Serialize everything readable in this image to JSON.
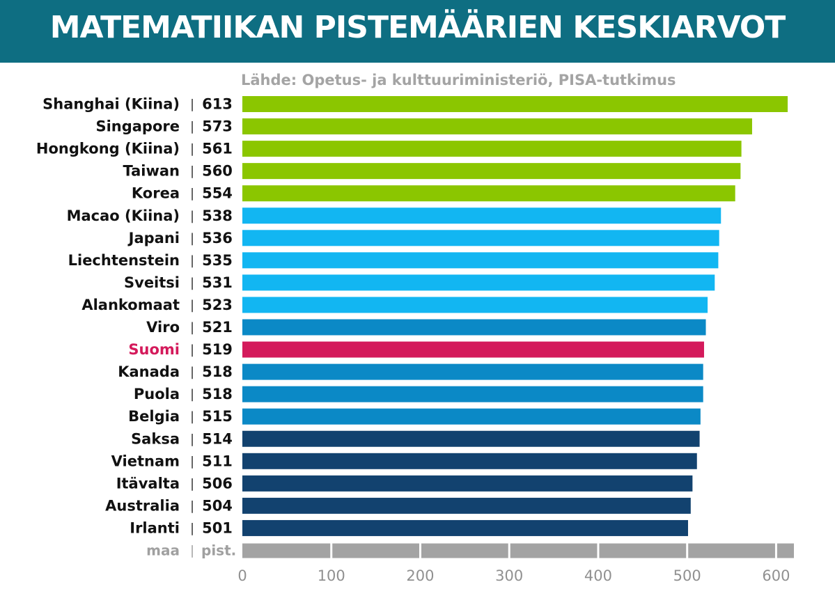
{
  "chart_data": {
    "type": "bar",
    "orientation": "horizontal",
    "title": "MATEMATIIKAN PISTEMÄÄRIEN KESKIARVOT",
    "source": "Lähde: Opetus- ja kulttuuriministeriö, PISA-tutkimus",
    "categories": [
      "Shanghai (Kiina)",
      "Singapore",
      "Hongkong (Kiina)",
      "Taiwan",
      "Korea",
      "Macao (Kiina)",
      "Japani",
      "Liechtenstein",
      "Sveitsi",
      "Alankomaat",
      "Viro",
      "Suomi",
      "Kanada",
      "Puola",
      "Belgia",
      "Saksa",
      "Vietnam",
      "Itävalta",
      "Australia",
      "Irlanti"
    ],
    "values": [
      613,
      573,
      561,
      560,
      554,
      538,
      536,
      535,
      531,
      523,
      521,
      519,
      518,
      518,
      515,
      514,
      511,
      506,
      504,
      501
    ],
    "bar_colors": [
      "#8bc600",
      "#8bc600",
      "#8bc600",
      "#8bc600",
      "#8bc600",
      "#12b6f2",
      "#12b6f2",
      "#12b6f2",
      "#12b6f2",
      "#12b6f2",
      "#0b89c6",
      "#d41a5b",
      "#0b89c6",
      "#0b89c6",
      "#0b89c6",
      "#12426f",
      "#12426f",
      "#12426f",
      "#12426f",
      "#12426f"
    ],
    "label_colors": [
      "#111111",
      "#111111",
      "#111111",
      "#111111",
      "#111111",
      "#111111",
      "#111111",
      "#111111",
      "#111111",
      "#111111",
      "#111111",
      "#d41a5b",
      "#111111",
      "#111111",
      "#111111",
      "#111111",
      "#111111",
      "#111111",
      "#111111",
      "#111111"
    ],
    "separator": "|",
    "axis_header_country": "maa",
    "axis_header_points": "pist.",
    "xlim": [
      0,
      620
    ],
    "xticks": [
      0,
      100,
      200,
      300,
      400,
      500,
      600
    ],
    "grid": false,
    "header_color": "#0e6e82",
    "axis_bar_color": "#a3a3a3"
  }
}
